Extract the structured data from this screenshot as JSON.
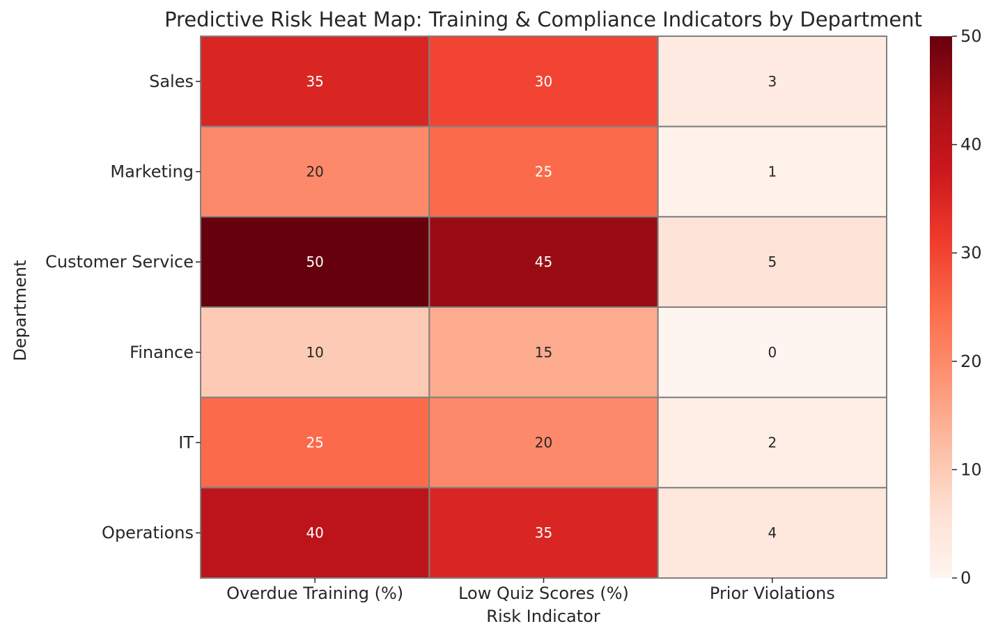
{
  "chart_data": {
    "type": "heatmap",
    "title": "Predictive Risk Heat Map: Training & Compliance Indicators by Department",
    "xlabel": "Risk Indicator",
    "ylabel": "Department",
    "x_categories": [
      "Overdue Training (%)",
      "Low Quiz Scores (%)",
      "Prior Violations"
    ],
    "y_categories": [
      "Sales",
      "Marketing",
      "Customer Service",
      "Finance",
      "IT",
      "Operations"
    ],
    "values": [
      [
        35,
        30,
        3
      ],
      [
        20,
        25,
        1
      ],
      [
        50,
        45,
        5
      ],
      [
        10,
        15,
        0
      ],
      [
        25,
        20,
        2
      ],
      [
        40,
        35,
        4
      ]
    ],
    "colorbar": {
      "range": [
        0,
        50
      ],
      "ticks": [
        0,
        10,
        20,
        30,
        40,
        50
      ],
      "colormap": "Reds"
    },
    "annotations": true,
    "cell_border_color": "#808080"
  }
}
